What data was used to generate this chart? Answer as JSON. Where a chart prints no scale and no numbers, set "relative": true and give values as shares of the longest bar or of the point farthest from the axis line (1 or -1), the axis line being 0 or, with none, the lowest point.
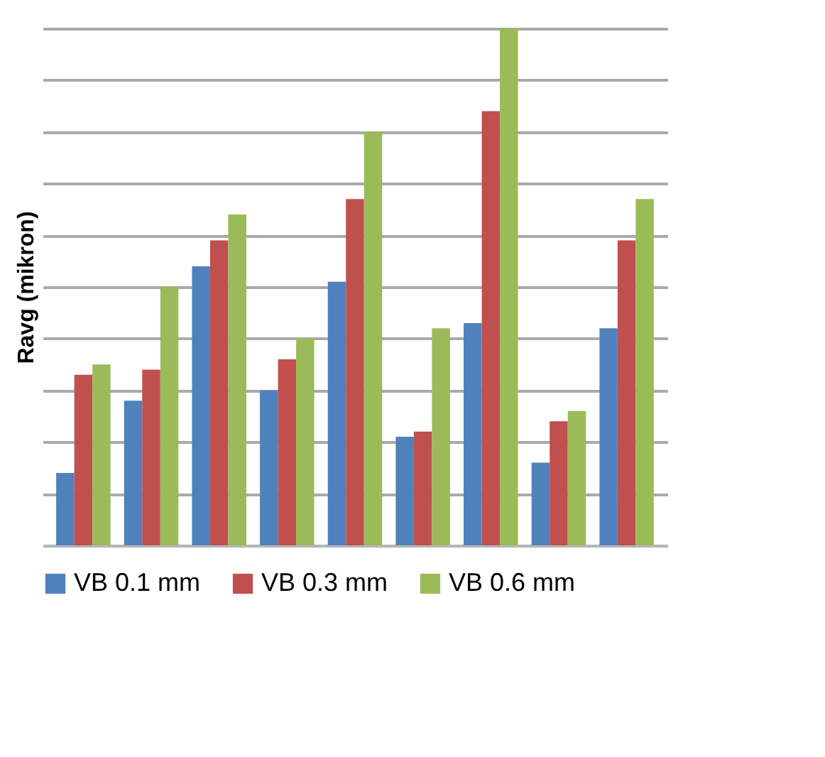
{
  "chart_data": {
    "type": "bar",
    "ylabel": "Ravg (mikron)",
    "relative": true,
    "categories": [
      null,
      null,
      null,
      null,
      null,
      null,
      null,
      null,
      null
    ],
    "series": [
      {
        "name": "VB 0.1 mm",
        "color": "#4f81bd",
        "values": [
          0.14,
          0.28,
          0.54,
          0.3,
          0.51,
          0.21,
          0.43,
          0.16,
          0.42
        ]
      },
      {
        "name": "VB 0.3 mm",
        "color": "#c0504d",
        "values": [
          0.33,
          0.34,
          0.59,
          0.36,
          0.67,
          0.22,
          0.84,
          0.24,
          0.59
        ]
      },
      {
        "name": "VB 0.6 mm",
        "color": "#9bbb59",
        "values": [
          0.35,
          0.5,
          0.64,
          0.4,
          0.8,
          0.42,
          1,
          0.26,
          0.67
        ]
      }
    ],
    "grid": "y",
    "legend": "bottom",
    "tick_labels": false
  }
}
